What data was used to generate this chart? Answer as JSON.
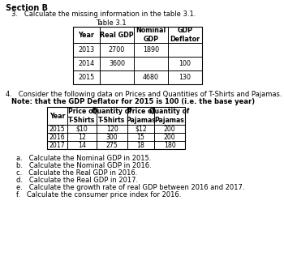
{
  "section_title": "Section B",
  "q3_text": "3.   Calculate the missing information in the table 3.1.",
  "table31_title": "Table 3.1",
  "table31_headers": [
    "Year",
    "Real GDP",
    "Nominal\nGDP",
    "GDP\nDeflator"
  ],
  "table31_rows": [
    [
      "2013",
      "2700",
      "1890",
      ""
    ],
    [
      "2014",
      "3600",
      "",
      "100"
    ],
    [
      "2015",
      "",
      "4680",
      "130"
    ]
  ],
  "q4_text": "4.   Consider the following data on Prices and Quantities of T-Shirts and Pajamas.",
  "q4_note": "Note: that the GDP Deflator for 2015 is 100 (i.e. the base year)",
  "table2_headers": [
    "Year",
    "Price of\nT-Shirts",
    "Quantity of\nT-Shirts",
    "Price of\nPajamas",
    "Quantity of\nPajamas"
  ],
  "table2_rows": [
    [
      "2015",
      "$10",
      "120",
      "$12",
      "200"
    ],
    [
      "2016",
      "12",
      "300",
      "15",
      "200"
    ],
    [
      "2017",
      "14",
      "275",
      "18",
      "180"
    ]
  ],
  "sub_questions": [
    "a.   Calculate the Nominal GDP in 2015.",
    "b.   Calculate the Nominal GDP in 2016.",
    "c.   Calculate the Real GDP in 2016.",
    "d.   Calculate the Real GDP in 2017.",
    "e.   Calculate the growth rate of real GDP between 2016 and 2017.",
    "f.   Calculate the consumer price index for 2016."
  ],
  "bg_color": "#ffffff",
  "text_color": "#000000"
}
